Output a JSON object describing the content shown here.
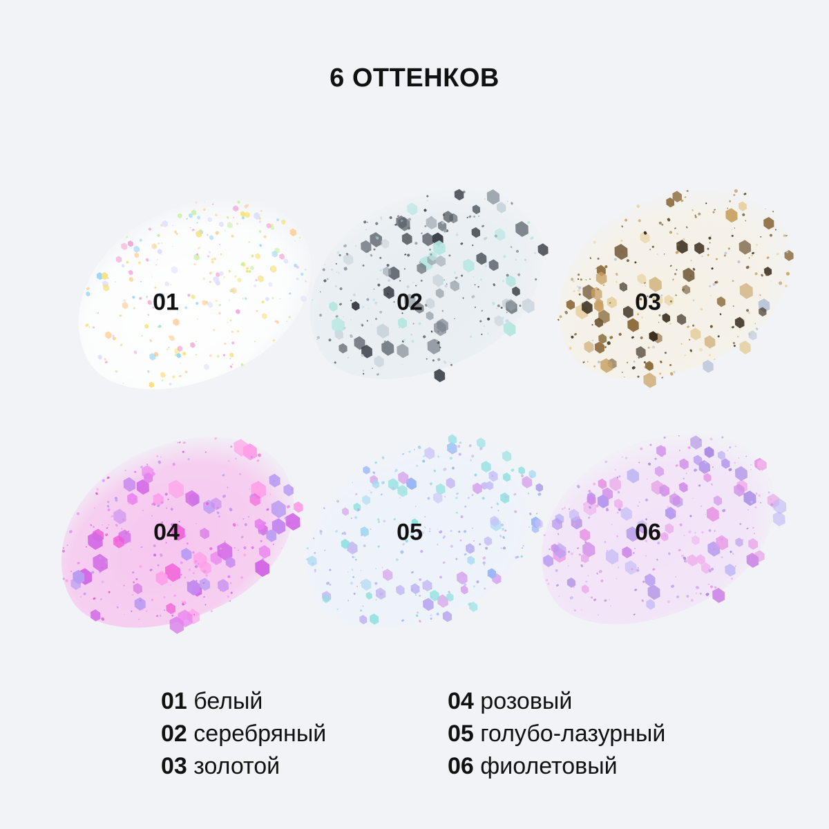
{
  "title": "6 ОТТЕНКОВ",
  "shades": [
    {
      "code": "01",
      "name": "белый",
      "base": "#ffffff",
      "colors": [
        "#f7e27a",
        "#9fd7f3",
        "#f3a8d8",
        "#c8f0a0",
        "#ffd2a0",
        "#e0e0ff"
      ]
    },
    {
      "code": "02",
      "name": "серебряный",
      "base": "#e8eef2",
      "colors": [
        "#5a6168",
        "#9aa3ab",
        "#c9d3da",
        "#3b4046",
        "#b5e6e0",
        "#7a8088"
      ]
    },
    {
      "code": "03",
      "name": "золотой",
      "base": "#f6f1e6",
      "colors": [
        "#8a6a3a",
        "#c9a265",
        "#3a2e1f",
        "#e7d2a4",
        "#b8c4d8",
        "#6d5533"
      ]
    },
    {
      "code": "04",
      "name": "розовый",
      "base": "#f7c6ef",
      "colors": [
        "#f05ad7",
        "#e97ff0",
        "#c58af0",
        "#ff9de8",
        "#d36ae6",
        "#b99cf3"
      ]
    },
    {
      "code": "05",
      "name": "голубо-лазурный",
      "base": "#eef3fb",
      "colors": [
        "#b7a6f0",
        "#9ab8f5",
        "#d7a6ec",
        "#8fe0e0",
        "#c8c0f8",
        "#a7d8f0"
      ]
    },
    {
      "code": "06",
      "name": "фиолетовый",
      "base": "#f3e2f8",
      "colors": [
        "#d08ee8",
        "#b79af0",
        "#e79be6",
        "#c3b9f6",
        "#a98be3",
        "#f0b3ec"
      ]
    }
  ]
}
